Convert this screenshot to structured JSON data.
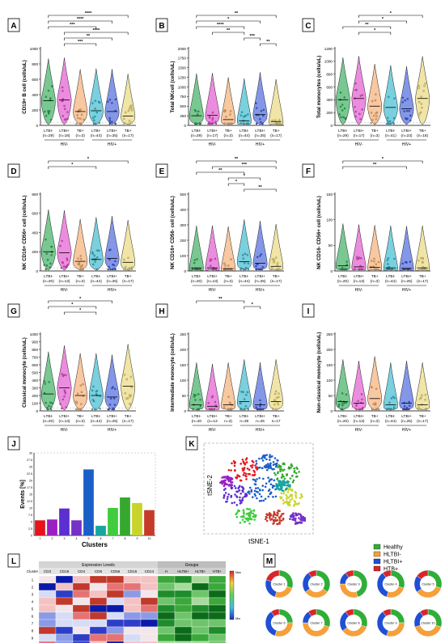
{
  "panels": [
    {
      "letter": "A",
      "ylabel": "CD19+ B cell (cells/uL)",
      "ylim": [
        0,
        1000
      ],
      "yticks": [
        0,
        200,
        400,
        600,
        800,
        1000
      ],
      "groups": [
        {
          "label": "LTBI-",
          "n": "(n=29)",
          "color": "#1fa34a",
          "median": 320
        },
        {
          "label": "LTBI+",
          "n": "(n=18)",
          "color": "#e040c8",
          "median": 330
        },
        {
          "label": "TB+",
          "n": "(n=3)",
          "color": "#f4a460",
          "median": 180
        },
        {
          "label": "LTBI-",
          "n": "(n=44)",
          "color": "#22b0c8",
          "median": 190
        },
        {
          "label": "LTBI+",
          "n": "(n=25)",
          "color": "#3050d8",
          "median": 180
        },
        {
          "label": "TB+",
          "n": "(n=17)",
          "color": "#e6d36a",
          "median": 120
        }
      ],
      "brackets": [
        {
          "from": 0,
          "to": 5,
          "stars": "****"
        },
        {
          "from": 0,
          "to": 4,
          "stars": "****"
        },
        {
          "from": 0,
          "to": 3,
          "stars": "***"
        },
        {
          "from": 1,
          "to": 5,
          "stars": "****"
        },
        {
          "from": 1,
          "to": 4,
          "stars": "**"
        },
        {
          "from": 1,
          "to": 3,
          "stars": "***"
        }
      ]
    },
    {
      "letter": "B",
      "ylabel": "Total NKcell (cells/uL)",
      "ylim": [
        0,
        2000
      ],
      "yticks": [
        0,
        250,
        500,
        750,
        1000,
        1250,
        1500,
        1750,
        2000
      ],
      "groups": [
        {
          "label": "LTBI-",
          "n": "(n=29)",
          "color": "#1fa34a",
          "median": 250
        },
        {
          "label": "LTBI+",
          "n": "(n=17)",
          "color": "#e040c8",
          "median": 260
        },
        {
          "label": "TB+",
          "n": "(n=3)",
          "color": "#f4a460",
          "median": 150
        },
        {
          "label": "LTBI-",
          "n": "(n=44)",
          "color": "#22b0c8",
          "median": 120
        },
        {
          "label": "LTBI+",
          "n": "(n=25)",
          "color": "#3050d8",
          "median": 280
        },
        {
          "label": "TB+",
          "n": "(n=17)",
          "color": "#e6d36a",
          "median": 100
        }
      ],
      "brackets": [
        {
          "from": 0,
          "to": 5,
          "stars": "**"
        },
        {
          "from": 0,
          "to": 4,
          "stars": "*"
        },
        {
          "from": 0,
          "to": 3,
          "stars": "****"
        },
        {
          "from": 1,
          "to": 3,
          "stars": "**"
        },
        {
          "from": 3,
          "to": 4,
          "stars": "***"
        },
        {
          "from": 4,
          "to": 5,
          "stars": "**"
        }
      ]
    },
    {
      "letter": "C",
      "ylabel": "Total monocytes (cells/uL)",
      "ylim": [
        0,
        1200
      ],
      "yticks": [
        0,
        200,
        400,
        600,
        800,
        1000,
        1200
      ],
      "groups": [
        {
          "label": "LTBI-",
          "n": "(n=29)",
          "color": "#1fa34a",
          "median": 400
        },
        {
          "label": "LTBI+",
          "n": "(n=17)",
          "color": "#e040c8",
          "median": 420
        },
        {
          "label": "TB+",
          "n": "(n=3)",
          "color": "#f4a460",
          "median": 300
        },
        {
          "label": "LTBI-",
          "n": "(n=41)",
          "color": "#22b0c8",
          "median": 280
        },
        {
          "label": "LTBI+",
          "n": "(n=23)",
          "color": "#3050d8",
          "median": 260
        },
        {
          "label": "TB+",
          "n": "(n=18)",
          "color": "#e6d36a",
          "median": 420
        }
      ],
      "brackets": [
        {
          "from": 1,
          "to": 5,
          "stars": "*"
        },
        {
          "from": 1,
          "to": 4,
          "stars": "*"
        },
        {
          "from": 0,
          "to": 3,
          "stars": "**"
        },
        {
          "from": 1,
          "to": 3,
          "stars": "*"
        }
      ]
    },
    {
      "letter": "D",
      "ylabel": "NK CD16+ CD56+ cell (cells/uL)",
      "ylim": [
        0,
        800
      ],
      "yticks": [
        0,
        200,
        400,
        600,
        800
      ],
      "groups": [
        {
          "label": "LTBI-",
          "n": "(n=20)",
          "color": "#1fa34a",
          "median": 200
        },
        {
          "label": "LTBI+",
          "n": "(n=13)",
          "color": "#e040c8",
          "median": 190
        },
        {
          "label": "TB+",
          "n": "(n=3)",
          "color": "#f4a460",
          "median": 100
        },
        {
          "label": "LTBI-",
          "n": "(n=44)",
          "color": "#22b0c8",
          "median": 120
        },
        {
          "label": "LTBI+",
          "n": "(n=25)",
          "color": "#3050d8",
          "median": 130
        },
        {
          "label": "TB+",
          "n": "(n=17)",
          "color": "#e6d36a",
          "median": 90
        }
      ],
      "brackets": [
        {
          "from": 0,
          "to": 5,
          "stars": "*"
        },
        {
          "from": 0,
          "to": 3,
          "stars": "*"
        }
      ]
    },
    {
      "letter": "E",
      "ylabel": "NK CD16+ CD56- cell (cells/uL)",
      "ylim": [
        0,
        500
      ],
      "yticks": [
        0,
        100,
        200,
        300,
        400,
        500
      ],
      "groups": [
        {
          "label": "LTBI-",
          "n": "(n=20)",
          "color": "#1fa34a",
          "median": 20
        },
        {
          "label": "LTBI+",
          "n": "(n=13)",
          "color": "#e040c8",
          "median": 20
        },
        {
          "label": "TB+",
          "n": "(n=3)",
          "color": "#f4a460",
          "median": 15
        },
        {
          "label": "LTBI-",
          "n": "(n=44)",
          "color": "#22b0c8",
          "median": 60
        },
        {
          "label": "LTBI+",
          "n": "(n=25)",
          "color": "#3050d8",
          "median": 50
        },
        {
          "label": "TB+",
          "n": "(n=17)",
          "color": "#e6d36a",
          "median": 30
        }
      ],
      "brackets": [
        {
          "from": 0,
          "to": 5,
          "stars": "**"
        },
        {
          "from": 1,
          "to": 5,
          "stars": "***"
        },
        {
          "from": 0,
          "to": 3,
          "stars": "**"
        },
        {
          "from": 2,
          "to": 4,
          "stars": "*"
        },
        {
          "from": 2,
          "to": 3,
          "stars": "*"
        },
        {
          "from": 3,
          "to": 5,
          "stars": "**"
        }
      ]
    },
    {
      "letter": "F",
      "ylabel": "NK CD16- CD56+ cell (cells/uL)",
      "ylim": [
        0,
        150
      ],
      "yticks": [
        0,
        50,
        100,
        150
      ],
      "groups": [
        {
          "label": "LTBI-",
          "n": "(n=20)",
          "color": "#1fa34a",
          "median": 10
        },
        {
          "label": "LTBI+",
          "n": "(n=13)",
          "color": "#e040c8",
          "median": 8
        },
        {
          "label": "TB+",
          "n": "(n=3)",
          "color": "#f4a460",
          "median": 7
        },
        {
          "label": "LTBI-",
          "n": "(n=44)",
          "color": "#22b0c8",
          "median": 6
        },
        {
          "label": "LTBI+",
          "n": "(n=25)",
          "color": "#3050d8",
          "median": 5
        },
        {
          "label": "TB+",
          "n": "(n=17)",
          "color": "#e6d36a",
          "median": 6
        }
      ],
      "brackets": [
        {
          "from": 0,
          "to": 5,
          "stars": "*"
        },
        {
          "from": 0,
          "to": 4,
          "stars": "**"
        }
      ]
    },
    {
      "letter": "G",
      "ylabel": "Classical monocyte (cells/uL)",
      "ylim": [
        0,
        1000
      ],
      "yticks": [
        0,
        100,
        200,
        300,
        400,
        500,
        600,
        700,
        800,
        900,
        1000
      ],
      "groups": [
        {
          "label": "LTBI-",
          "n": "(n=20)",
          "color": "#1fa34a",
          "median": 220
        },
        {
          "label": "LTBI+",
          "n": "(n=13)",
          "color": "#e040c8",
          "median": 300
        },
        {
          "label": "TB+",
          "n": "(n=3)",
          "color": "#f4a460",
          "median": 200
        },
        {
          "label": "LTBI-",
          "n": "(n=44)",
          "color": "#22b0c8",
          "median": 200
        },
        {
          "label": "LTBI+",
          "n": "(n=25)",
          "color": "#3050d8",
          "median": 180
        },
        {
          "label": "TB+",
          "n": "(n=17)",
          "color": "#e6d36a",
          "median": 320
        }
      ],
      "brackets": [
        {
          "from": 0,
          "to": 4,
          "stars": "*"
        },
        {
          "from": 0,
          "to": 3,
          "stars": "*"
        },
        {
          "from": 1,
          "to": 3,
          "stars": "*"
        }
      ]
    },
    {
      "letter": "H",
      "ylabel": "Intermediate monocyte (cells/uL)",
      "ylim": [
        0,
        250
      ],
      "yticks": [
        0,
        50,
        100,
        150,
        200,
        250
      ],
      "groups": [
        {
          "label": "LTBI-",
          "n": "(n=20",
          "color": "#1fa34a",
          "median": 20
        },
        {
          "label": "LTBI+",
          "n": "(n=13",
          "color": "#e040c8",
          "median": 15
        },
        {
          "label": "TB+",
          "n": "n=3)",
          "color": "#f4a460",
          "median": 20
        },
        {
          "label": "LTBI-",
          "n": "n=39",
          "color": "#22b0c8",
          "median": 30
        },
        {
          "label": "LTBI+",
          "n": "n=25",
          "color": "#3050d8",
          "median": 20
        },
        {
          "label": "TB+",
          "n": "n=17",
          "color": "#e6d36a",
          "median": 30
        }
      ],
      "brackets": [
        {
          "from": 0,
          "to": 3,
          "stars": "**"
        },
        {
          "from": 3,
          "to": 4,
          "stars": "*"
        }
      ]
    },
    {
      "letter": "I",
      "ylabel": "Non-classical monocyte (cells/uL)",
      "ylim": [
        0,
        250
      ],
      "yticks": [
        0,
        50,
        100,
        150,
        200,
        250
      ],
      "groups": [
        {
          "label": "LTBI-",
          "n": "(n=20)",
          "color": "#1fa34a",
          "median": 30
        },
        {
          "label": "LTBI+",
          "n": "(n=13)",
          "color": "#e040c8",
          "median": 25
        },
        {
          "label": "TB+",
          "n": "(n=3)",
          "color": "#f4a460",
          "median": 40
        },
        {
          "label": "LTBI-",
          "n": "(n=44)",
          "color": "#22b0c8",
          "median": 20
        },
        {
          "label": "LTBI+",
          "n": "(n=25)",
          "color": "#3050d8",
          "median": 25
        },
        {
          "label": "TB+",
          "n": "(n=17)",
          "color": "#e6d36a",
          "median": 20
        }
      ],
      "brackets": []
    }
  ],
  "hiv_neg_label": "HIV-",
  "hiv_pos_label": "HIV+",
  "chart_data": {
    "type": "bar",
    "xlabel": "Clusters",
    "ylabel": "Events [%]",
    "categories": [
      "1",
      "2",
      "3",
      "4",
      "5",
      "6",
      "7",
      "8",
      "9",
      "10"
    ],
    "values": [
      5.5,
      5.8,
      9.8,
      5.5,
      24.0,
      3.5,
      10.0,
      13.8,
      11.8,
      9.2
    ],
    "ylim": [
      0,
      30
    ],
    "yticks": [
      0,
      2.5,
      5,
      7.5,
      10,
      12.5,
      15,
      17.5,
      20,
      22.5,
      25,
      27.5,
      30
    ],
    "colors": [
      "#e8121a",
      "#9b1ec4",
      "#5b2fd0",
      "#7530c8",
      "#1a5ec8",
      "#17a5a0",
      "#3fcc3f",
      "#35a82e",
      "#c8d42a",
      "#c63a2a"
    ]
  },
  "panel_j_letter": "J",
  "panel_k": {
    "letter": "K",
    "xlabel": "tSNE-1",
    "ylabel": "tSNE-2"
  },
  "panel_l": {
    "letter": "L",
    "cluster_col": "Cluster",
    "expr_header": "Expression Levels",
    "groups_header": "Groups",
    "markers": [
      "CD3",
      "CD19",
      "CD4",
      "CD8",
      "CD56",
      "CD16",
      "CD14"
    ],
    "group_cols": [
      "H",
      "HLTBI+",
      "HLTBI-",
      "HTB+"
    ],
    "rows": [
      "1",
      "2",
      "3",
      "4",
      "5",
      "6",
      "7",
      "8",
      "9",
      "10"
    ],
    "scale_top": "Max",
    "scale_bottom": "Min"
  },
  "panel_m": {
    "letter": "M",
    "legend": [
      {
        "label": "Healthy",
        "color": "#2fae38"
      },
      {
        "label": "HLTBI-",
        "color": "#f5a03a"
      },
      {
        "label": "HLTBI+",
        "color": "#1f4fd4"
      },
      {
        "label": "HTB+",
        "color": "#d8262a"
      }
    ],
    "donuts": [
      {
        "label": "Cluster 1",
        "shares": [
          0.3,
          0.25,
          0.25,
          0.2
        ]
      },
      {
        "label": "Cluster 2",
        "shares": [
          0.35,
          0.3,
          0.25,
          0.1
        ]
      },
      {
        "label": "Cluster 3",
        "shares": [
          0.45,
          0.3,
          0.15,
          0.1
        ]
      },
      {
        "label": "Cluster 4",
        "shares": [
          0.3,
          0.25,
          0.35,
          0.1
        ]
      },
      {
        "label": "Cluster 5",
        "shares": [
          0.3,
          0.35,
          0.2,
          0.15
        ]
      },
      {
        "label": "Cluster 6",
        "shares": [
          0.25,
          0.3,
          0.35,
          0.1
        ]
      },
      {
        "label": "Cluster 7",
        "shares": [
          0.3,
          0.45,
          0.15,
          0.1
        ]
      },
      {
        "label": "Cluster 8",
        "shares": [
          0.3,
          0.35,
          0.25,
          0.1
        ]
      },
      {
        "label": "Cluster 9",
        "shares": [
          0.25,
          0.3,
          0.35,
          0.1
        ]
      },
      {
        "label": "Cluster 10",
        "shares": [
          0.3,
          0.4,
          0.2,
          0.1
        ]
      }
    ]
  }
}
